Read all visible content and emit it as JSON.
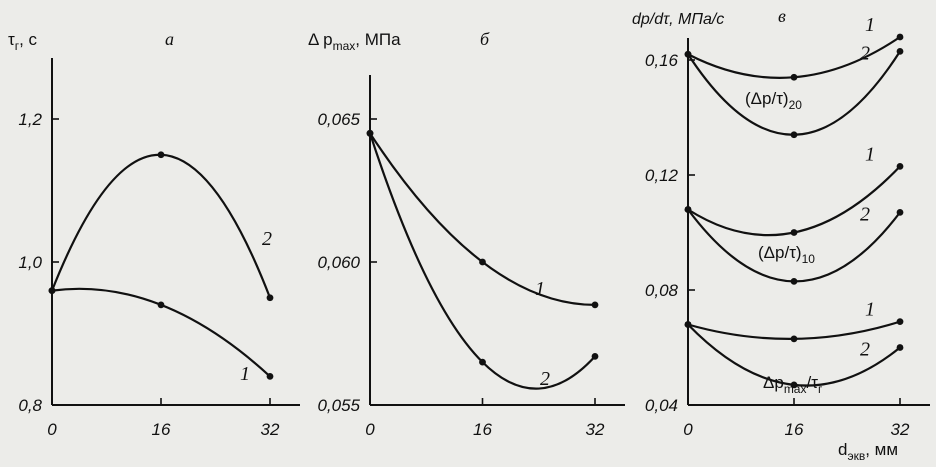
{
  "chart_data": [
    {
      "type": "line",
      "panel": "а",
      "ylabel": "τ",
      "ylabel_sub": "г",
      "ylabel_unit": ", с",
      "ylim": [
        0.8,
        1.3
      ],
      "yticks": [
        "0,8",
        "1,0",
        "1,2"
      ],
      "ytick_values": [
        0.8,
        1.0,
        1.2
      ],
      "xlim": [
        0,
        32
      ],
      "xticks": [
        "0",
        "16",
        "32"
      ],
      "xtick_values": [
        0,
        16,
        32
      ],
      "series": [
        {
          "name": "1",
          "x": [
            0,
            16,
            32
          ],
          "y": [
            0.96,
            0.94,
            0.84
          ]
        },
        {
          "name": "2",
          "x": [
            0,
            16,
            32
          ],
          "y": [
            0.96,
            1.15,
            0.95
          ]
        }
      ]
    },
    {
      "type": "line",
      "panel": "б",
      "ylabel": "Δ p",
      "ylabel_sub": "max",
      "ylabel_unit": ", МПа",
      "ylim": [
        0.055,
        0.067
      ],
      "yticks": [
        "0,055",
        "0,060",
        "0,065"
      ],
      "ytick_values": [
        0.055,
        0.06,
        0.065
      ],
      "xlim": [
        0,
        32
      ],
      "xticks": [
        "0",
        "16",
        "32"
      ],
      "xtick_values": [
        0,
        16,
        32
      ],
      "series": [
        {
          "name": "1",
          "x": [
            0,
            16,
            32
          ],
          "y": [
            0.0645,
            0.06,
            0.0585
          ]
        },
        {
          "name": "2",
          "x": [
            0,
            16,
            32
          ],
          "y": [
            0.0645,
            0.0565,
            0.0567
          ]
        }
      ]
    },
    {
      "type": "line",
      "panel": "в",
      "ylabel": "dp/dτ, МПа/с",
      "ylim": [
        0.04,
        0.17
      ],
      "yticks": [
        "0,04",
        "0,08",
        "0,12",
        "0,16"
      ],
      "ytick_values": [
        0.04,
        0.08,
        0.12,
        0.16
      ],
      "xlim": [
        0,
        32
      ],
      "xticks": [
        "0",
        "16",
        "32"
      ],
      "xtick_values": [
        0,
        16,
        32
      ],
      "xlabel": "d",
      "xlabel_sub": "экв",
      "xlabel_unit": ", мм",
      "groups": [
        {
          "label": "(Δp/τ)",
          "sub": "20"
        },
        {
          "label": "(Δp/τ)",
          "sub": "10"
        },
        {
          "label": "Δp",
          "sub1": "max",
          "mid": "/τ",
          "sub2": "г"
        }
      ],
      "series": [
        {
          "name": "1",
          "x": [
            0,
            16,
            32
          ],
          "y": [
            0.162,
            0.154,
            0.168
          ]
        },
        {
          "name": "2",
          "x": [
            0,
            16,
            32
          ],
          "y": [
            0.162,
            0.134,
            0.163
          ]
        },
        {
          "name": "1",
          "x": [
            0,
            16,
            32
          ],
          "y": [
            0.108,
            0.1,
            0.123
          ]
        },
        {
          "name": "2",
          "x": [
            0,
            16,
            32
          ],
          "y": [
            0.108,
            0.083,
            0.107
          ]
        },
        {
          "name": "1",
          "x": [
            0,
            16,
            32
          ],
          "y": [
            0.068,
            0.063,
            0.069
          ]
        },
        {
          "name": "2",
          "x": [
            0,
            16,
            32
          ],
          "y": [
            0.068,
            0.047,
            0.06
          ]
        }
      ]
    }
  ]
}
